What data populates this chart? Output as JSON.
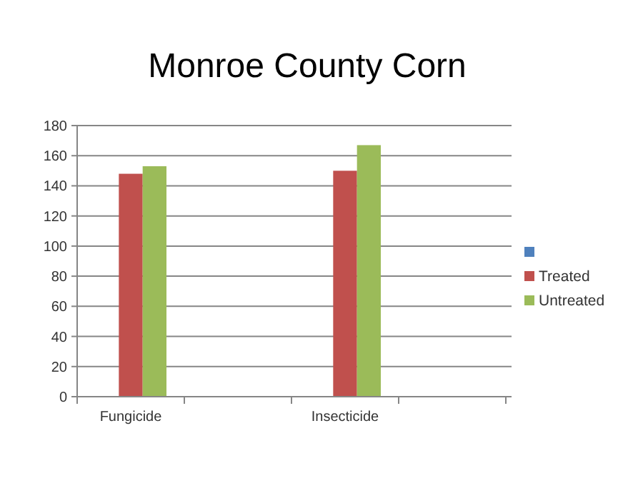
{
  "chart_data": {
    "type": "bar",
    "title": "Monroe County Corn",
    "categories": [
      "Fungicide",
      null,
      "Insecticide",
      null
    ],
    "series": [
      {
        "color": "#4f81bd",
        "values": [
          null,
          null,
          null,
          null
        ]
      },
      {
        "name": "Treated",
        "color": "#c0504d",
        "values": [
          148,
          null,
          150,
          null
        ]
      },
      {
        "name": "Untreated",
        "color": "#9bbb59",
        "values": [
          153,
          null,
          167,
          null
        ]
      }
    ],
    "ylim": [
      0,
      180
    ],
    "yticks": [
      0,
      20,
      40,
      60,
      80,
      100,
      120,
      140,
      160,
      180
    ],
    "grid": "y",
    "legend": "right"
  }
}
